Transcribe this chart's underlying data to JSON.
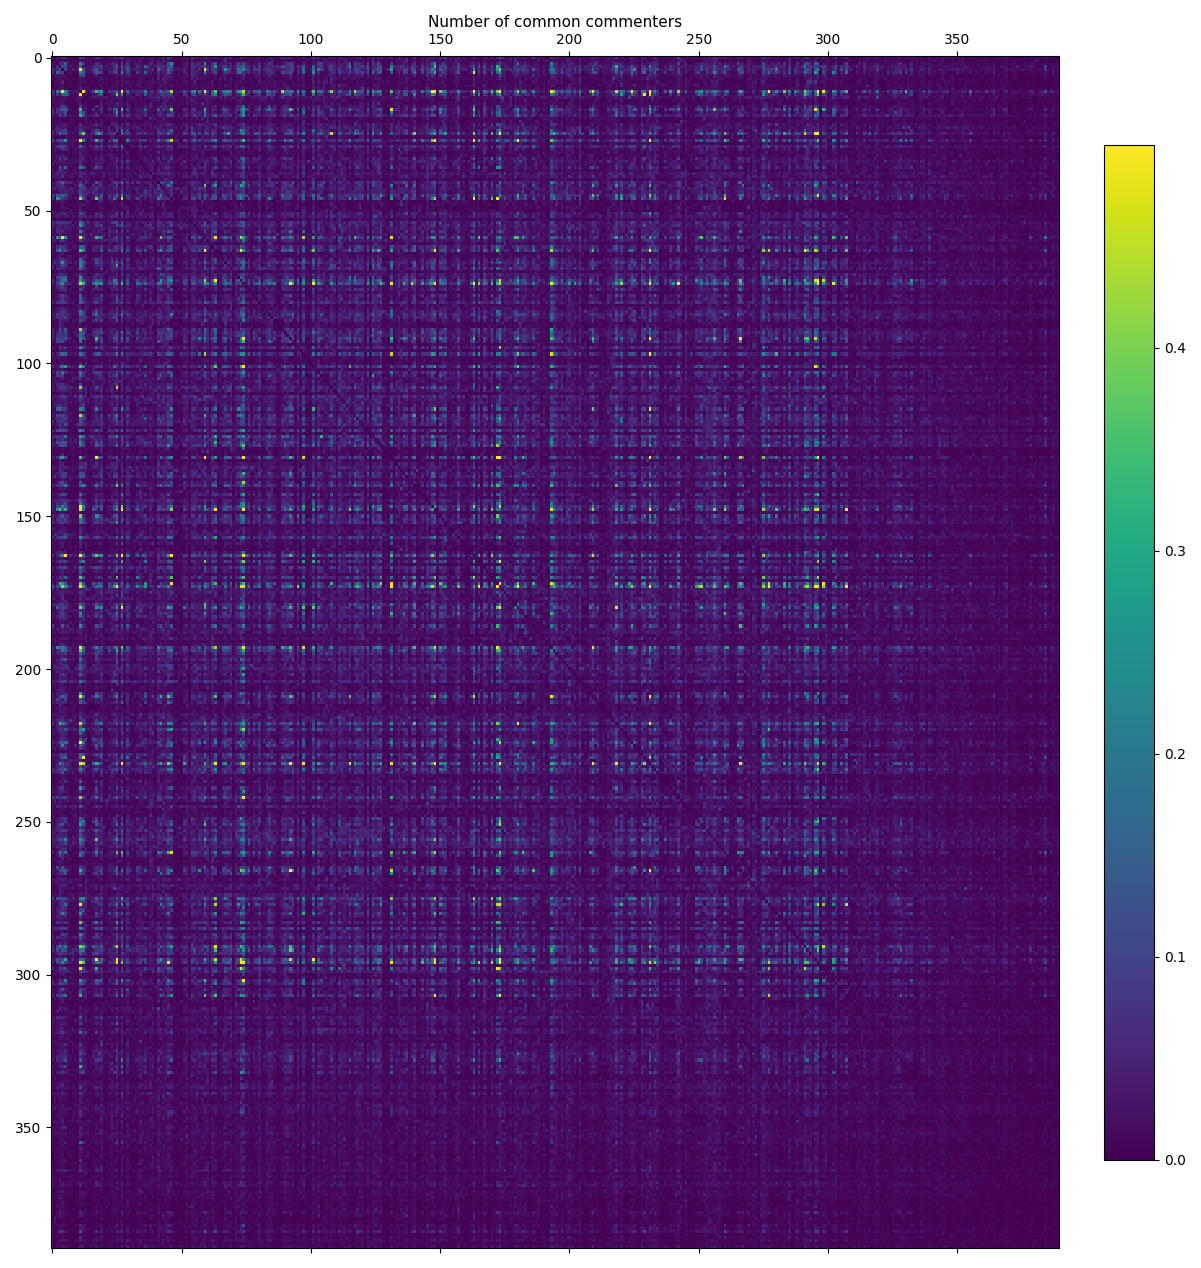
{
  "title": "",
  "xlabel_top": "Number of common commenters",
  "matrix_size": 390,
  "vmin": 0.0,
  "vmax": 0.5,
  "colorbar_ticks": [
    0.0,
    0.1,
    0.2,
    0.3,
    0.4
  ],
  "colorbar_tick_labels": [
    "0.0",
    "0.1",
    "0.2",
    "0.3",
    "0.4"
  ],
  "xticks": [
    0,
    50,
    100,
    150,
    200,
    250,
    300,
    350
  ],
  "yticks": [
    0,
    50,
    100,
    150,
    200,
    250,
    300,
    350
  ],
  "cmap": "viridis",
  "figsize": [
    12.01,
    12.68
  ],
  "dpi": 100,
  "seed": 42,
  "background_color": "#ffffff"
}
